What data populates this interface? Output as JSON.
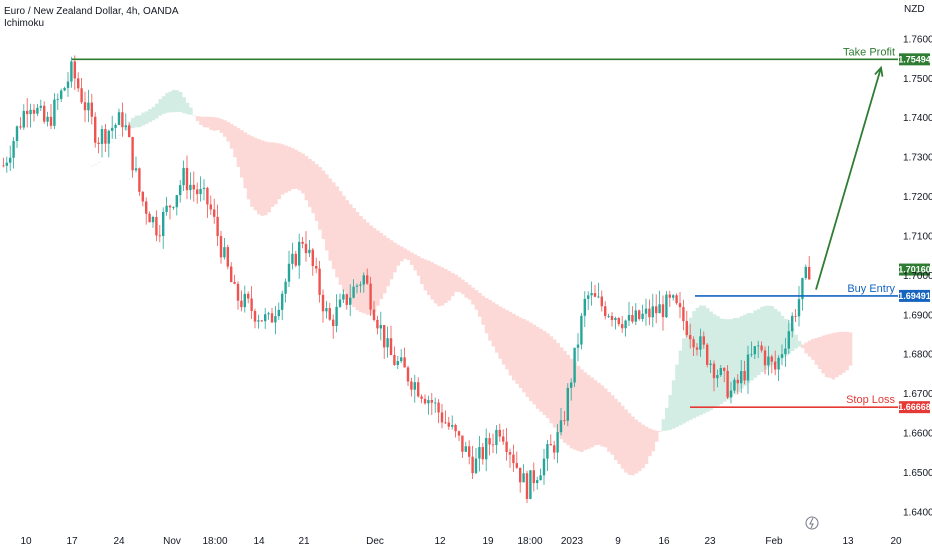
{
  "header": {
    "title": "Euro / New Zealand Dollar, 4h, OANDA",
    "indicator": "Ichimoku"
  },
  "chart_data": {
    "type": "candlestick",
    "title": "Euro / New Zealand Dollar, 4h, OANDA",
    "currency": "NZD",
    "ylim": [
      1.635,
      1.77
    ],
    "y_ticks": [
      1.64,
      1.65,
      1.66,
      1.67,
      1.68,
      1.69,
      1.7,
      1.71,
      1.72,
      1.73,
      1.74,
      1.75,
      1.76
    ],
    "y_tick_labels": [
      "1.64000",
      "1.65000",
      "1.66000",
      "1.67000",
      "1.68000",
      "1.69000",
      "1.70000",
      "1.71000",
      "1.72000",
      "1.73000",
      "1.74000",
      "1.75000",
      "1.76000"
    ],
    "x_tick_labels": [
      "10",
      "17",
      "24",
      "Nov",
      "18:00",
      "14",
      "21",
      "Dec",
      "12",
      "19",
      "18:00",
      "2023",
      "9",
      "16",
      "23",
      "Feb",
      "13",
      "20"
    ],
    "grid": false,
    "colors": {
      "up": "#26a69a",
      "down": "#ef5350",
      "cloud_bull": "#d4ede4",
      "cloud_bear": "#fcd9d6"
    },
    "series": [
      {
        "name": "price_path",
        "x": [
          0,
          3,
          5,
          8,
          11,
          14,
          16,
          18,
          21,
          24,
          27,
          31,
          35,
          38,
          42,
          45,
          50,
          55,
          58,
          61,
          65,
          68,
          73,
          78,
          82,
          85,
          88,
          90,
          94
        ],
        "values": [
          1.728,
          1.745,
          1.738,
          1.752,
          1.735,
          1.74,
          1.72,
          1.712,
          1.725,
          1.718,
          1.695,
          1.688,
          1.71,
          1.688,
          1.7,
          1.68,
          1.668,
          1.652,
          1.662,
          1.646,
          1.66,
          1.695,
          1.688,
          1.693,
          1.68,
          1.67,
          1.682,
          1.676,
          1.702
        ]
      }
    ],
    "levels": [
      {
        "name": "Take Profit",
        "value": 1.75494,
        "label": "1.75494",
        "color": "#2e7d32"
      },
      {
        "name": "Buy Entry",
        "value": 1.69491,
        "label": "1.69491",
        "color": "#1565c0"
      },
      {
        "name": "Stop Loss",
        "value": 1.66668,
        "label": "1.66668",
        "color": "#e53935"
      }
    ],
    "last_price": {
      "value": 1.7016,
      "label": "1.70160",
      "color": "#2e7d32"
    }
  },
  "controls": {
    "replay_icon": "lightning-icon"
  }
}
